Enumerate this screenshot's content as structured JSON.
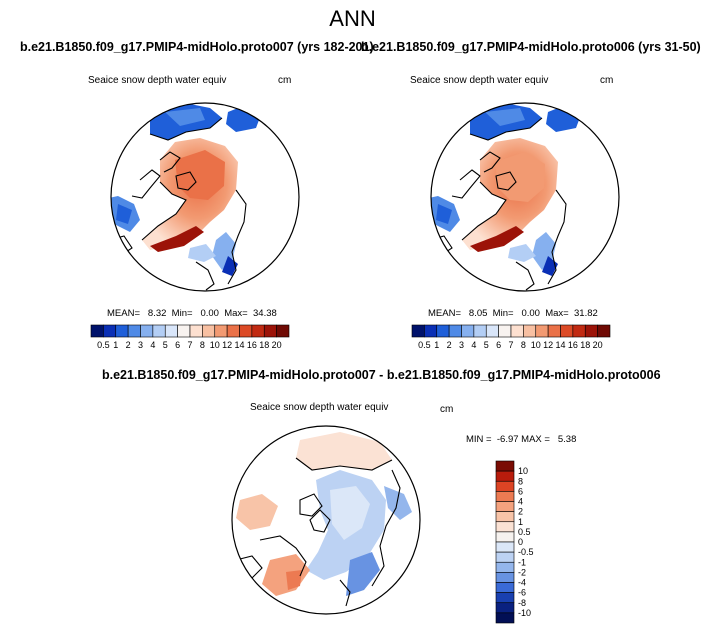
{
  "title": "ANN",
  "panels": [
    {
      "case": "b.e21.B1850.f09_g17.PMIP4-midHolo.proto007 (yrs 182-201)",
      "variable": "Seaice snow depth water equiv",
      "units": "cm",
      "stats": "MEAN=   8.32  Min=   0.00  Max=  34.38",
      "colorbar_labels": [
        "0.5",
        "1",
        "2",
        "3",
        "4",
        "5",
        "6",
        "7",
        "8",
        "10",
        "12",
        "14",
        "16",
        "18",
        "20"
      ]
    },
    {
      "case": "b.e21.B1850.f09_g17.PMIP4-midHolo.proto006 (yrs 31-50)",
      "variable": "Seaice snow depth water equiv",
      "units": "cm",
      "stats": "MEAN=   8.05  Min=   0.00  Max=  31.82",
      "colorbar_labels": [
        "0.5",
        "1",
        "2",
        "3",
        "4",
        "5",
        "6",
        "7",
        "8",
        "10",
        "12",
        "14",
        "16",
        "18",
        "20"
      ]
    }
  ],
  "diff": {
    "case": "b.e21.B1850.f09_g17.PMIP4-midHolo.proto007 - b.e21.B1850.f09_g17.PMIP4-midHolo.proto006",
    "variable": "Seaice snow depth water equiv",
    "units": "cm",
    "stats": "MIN =  -6.97 MAX =   5.38",
    "colorbar_labels": [
      "10",
      "8",
      "6",
      "4",
      "2",
      "1",
      "0.5",
      "0",
      "-0.5",
      "-1",
      "-2",
      "-4",
      "-6",
      "-8",
      "-10"
    ]
  },
  "colors": {
    "abs_scale": [
      "#00126b",
      "#0a2fb5",
      "#1f5fd9",
      "#4f8ae6",
      "#86b0ef",
      "#b3cef5",
      "#d9e6fa",
      "#f8f3f0",
      "#fde0d0",
      "#f8c0a2",
      "#f29a72",
      "#ea7148",
      "#dc4a26",
      "#c12a12",
      "#9c1308",
      "#6f0a04"
    ],
    "diff_scale": [
      "#7a0c04",
      "#b81c0c",
      "#dc4424",
      "#ec7a52",
      "#f4a27e",
      "#f8c4a8",
      "#fbe2d4",
      "#f6f2ef",
      "#dbe7f8",
      "#bcd2f3",
      "#94b6ec",
      "#6893e2",
      "#3a6ad6",
      "#1940b0",
      "#0a2180",
      "#020f55"
    ]
  }
}
